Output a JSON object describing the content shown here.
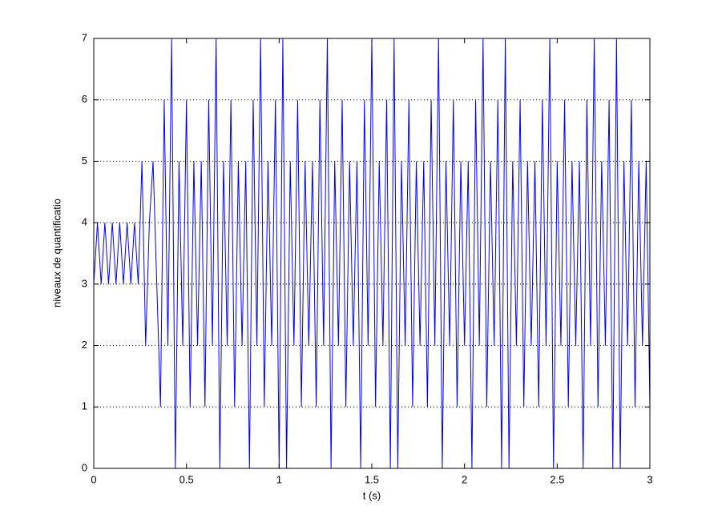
{
  "chart_data": {
    "type": "line",
    "xlabel": "t (s)",
    "ylabel": "niveaux de quantificatio",
    "xlim": [
      0,
      3
    ],
    "ylim": [
      0,
      7
    ],
    "xticks": [
      0,
      0.5,
      1,
      1.5,
      2,
      2.5,
      3
    ],
    "yticks": [
      0,
      1,
      2,
      3,
      4,
      5,
      6,
      7
    ],
    "ygrid": true,
    "series": [
      {
        "color": "#0000ff",
        "x": [
          0,
          0.02,
          0.04,
          0.06,
          0.08,
          0.1,
          0.12,
          0.14,
          0.16,
          0.18,
          0.2,
          0.22,
          0.24,
          0.26,
          0.28,
          0.3,
          0.32,
          0.34,
          0.36,
          0.38,
          0.4,
          0.42,
          0.44,
          0.46,
          0.48,
          0.5,
          0.52,
          0.54,
          0.56,
          0.58,
          0.6,
          0.62,
          0.64,
          0.66,
          0.68,
          0.7,
          0.72,
          0.74,
          0.76,
          0.78,
          0.8,
          0.82,
          0.84,
          0.86,
          0.88,
          0.9,
          0.92,
          0.94,
          0.96,
          0.98,
          1,
          1.02,
          1.04,
          1.06,
          1.08,
          1.1,
          1.12,
          1.14,
          1.16,
          1.18,
          1.2,
          1.22,
          1.24,
          1.26,
          1.28,
          1.3,
          1.32,
          1.34,
          1.36,
          1.38,
          1.4,
          1.42,
          1.44,
          1.46,
          1.48,
          1.5,
          1.52,
          1.54,
          1.56,
          1.58,
          1.6,
          1.62,
          1.64,
          1.66,
          1.68,
          1.7,
          1.72,
          1.74,
          1.76,
          1.78,
          1.8,
          1.82,
          1.84,
          1.86,
          1.88,
          1.9,
          1.92,
          1.94,
          1.96,
          1.98,
          2,
          2.02,
          2.04,
          2.06,
          2.08,
          2.1,
          2.12,
          2.14,
          2.16,
          2.18,
          2.2,
          2.22,
          2.24,
          2.26,
          2.28,
          2.3,
          2.32,
          2.34,
          2.36,
          2.38,
          2.4,
          2.42,
          2.44,
          2.46,
          2.48,
          2.5,
          2.52,
          2.54,
          2.56,
          2.58,
          2.6,
          2.62,
          2.64,
          2.66,
          2.68,
          2.7,
          2.72,
          2.74,
          2.76,
          2.78,
          2.8,
          2.82,
          2.84,
          2.86,
          2.88,
          2.9,
          2.92,
          2.94,
          2.96,
          2.98,
          3
        ],
        "values": [
          3,
          4,
          3,
          4,
          3,
          4,
          3,
          4,
          3,
          4,
          3,
          4,
          3,
          5,
          2,
          4,
          5,
          3,
          1,
          6,
          2,
          7,
          0,
          5,
          2,
          6,
          1,
          5,
          2,
          5,
          1,
          6,
          2,
          7,
          0,
          5,
          2,
          6,
          1,
          5,
          2,
          5,
          0,
          6,
          2,
          7,
          1,
          5,
          2,
          6,
          0,
          7,
          0,
          5,
          2,
          6,
          1,
          5,
          2,
          5,
          1,
          6,
          2,
          7,
          0,
          5,
          2,
          6,
          1,
          5,
          2,
          5,
          0,
          6,
          2,
          7,
          1,
          5,
          2,
          6,
          0,
          7,
          0,
          5,
          2,
          6,
          1,
          5,
          2,
          5,
          1,
          6,
          2,
          7,
          0,
          5,
          2,
          6,
          1,
          5,
          2,
          5,
          0,
          6,
          2,
          7,
          1,
          5,
          2,
          6,
          0,
          7,
          0,
          5,
          2,
          6,
          1,
          5,
          2,
          5,
          1,
          6,
          2,
          7,
          0,
          5,
          2,
          6,
          1,
          5,
          2,
          5,
          0,
          6,
          2,
          7,
          1,
          5,
          2,
          6,
          0,
          7,
          0,
          5,
          2,
          6,
          1,
          5,
          2,
          5,
          1
        ]
      }
    ]
  }
}
